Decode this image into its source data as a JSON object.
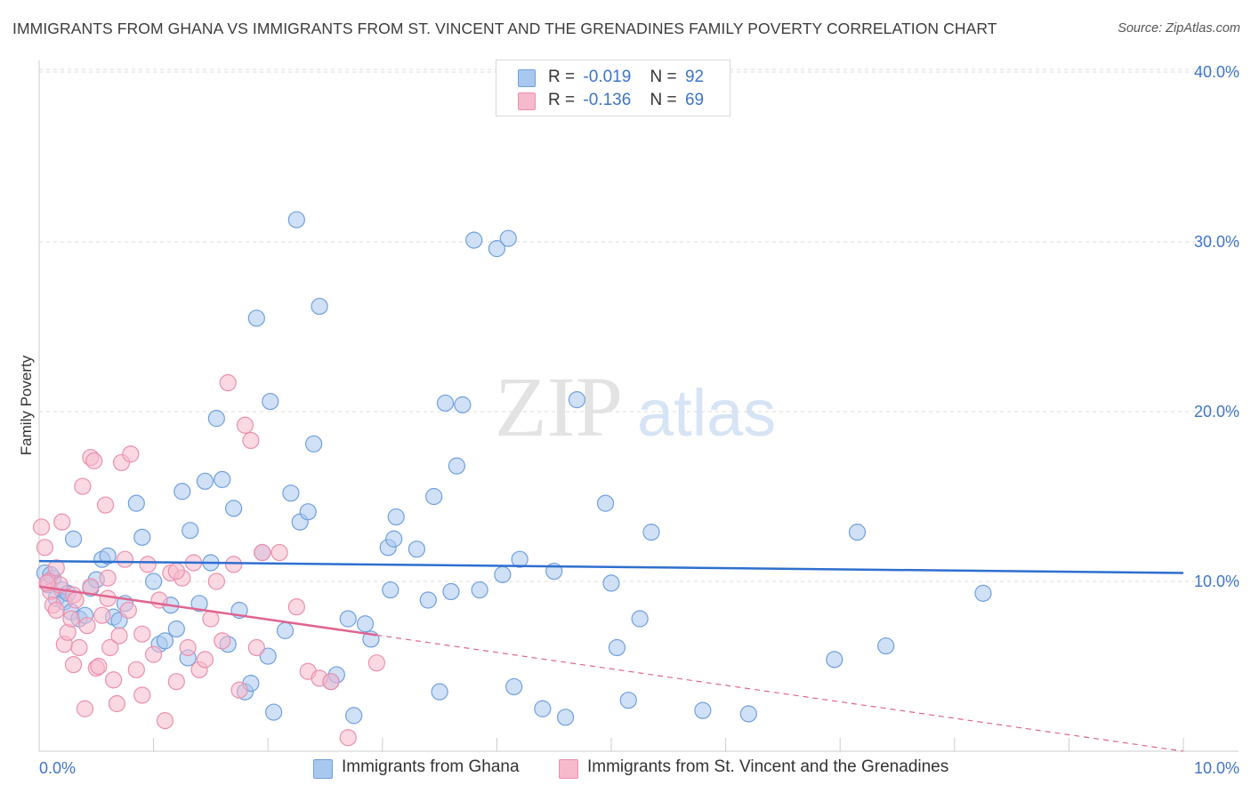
{
  "title": "IMMIGRANTS FROM GHANA VS IMMIGRANTS FROM ST. VINCENT AND THE GRENADINES FAMILY POVERTY CORRELATION CHART",
  "source": "Source: ZipAtlas.com",
  "watermark": {
    "zip": "ZIP",
    "atlas": "atlas"
  },
  "legend": {
    "r_label": "R =",
    "n_label": "N =",
    "rows": [
      {
        "r": "-0.019",
        "n": "92"
      },
      {
        "r": "-0.136",
        "n": "69"
      }
    ]
  },
  "colors": {
    "blue_fill": "#a9c8f0",
    "blue_stroke": "#6f9fdd",
    "blue_line": "#2e6fcf",
    "pink_fill": "#f7b9cc",
    "pink_stroke": "#ea8fae",
    "pink_line": "#e0648f",
    "tick_text": "#3d75c9",
    "grid": "#dddddd"
  },
  "chart_data": {
    "type": "scatter",
    "ylabel": "Family Poverty",
    "xlim": [
      0,
      10
    ],
    "ylim": [
      0,
      42
    ],
    "x_tick_labels": [
      "0.0%",
      "10.0%"
    ],
    "y_ticks": [
      10,
      20,
      30,
      40
    ],
    "y_tick_labels": [
      "10.0%",
      "20.0%",
      "30.0%",
      "40.0%"
    ],
    "grid": "horizontal dashed",
    "legend_placement": "top-center",
    "series": [
      {
        "name": "Immigrants from Ghana",
        "color": "blue",
        "trend": {
          "x": [
            0,
            10
          ],
          "y": [
            11.2,
            10.5
          ],
          "solid_until": 10
        },
        "points": [
          [
            0.05,
            10.5
          ],
          [
            0.08,
            9.8
          ],
          [
            0.12,
            10.2
          ],
          [
            0.15,
            9.0
          ],
          [
            0.2,
            9.5
          ],
          [
            0.22,
            8.8
          ],
          [
            0.25,
            9.3
          ],
          [
            0.28,
            8.2
          ],
          [
            0.3,
            12.5
          ],
          [
            0.35,
            7.8
          ],
          [
            0.4,
            8.0
          ],
          [
            0.45,
            9.6
          ],
          [
            0.5,
            10.1
          ],
          [
            0.55,
            11.3
          ],
          [
            0.6,
            11.5
          ],
          [
            0.65,
            7.9
          ],
          [
            0.7,
            7.7
          ],
          [
            0.75,
            8.7
          ],
          [
            0.85,
            14.6
          ],
          [
            0.9,
            12.6
          ],
          [
            1.0,
            10.0
          ],
          [
            1.05,
            6.3
          ],
          [
            1.1,
            6.5
          ],
          [
            1.15,
            8.6
          ],
          [
            1.2,
            7.2
          ],
          [
            1.25,
            15.3
          ],
          [
            1.3,
            5.5
          ],
          [
            1.32,
            13.0
          ],
          [
            1.4,
            8.7
          ],
          [
            1.45,
            15.9
          ],
          [
            1.5,
            11.1
          ],
          [
            1.55,
            19.6
          ],
          [
            1.6,
            16.0
          ],
          [
            1.65,
            6.3
          ],
          [
            1.7,
            14.3
          ],
          [
            1.75,
            8.3
          ],
          [
            1.8,
            3.5
          ],
          [
            1.85,
            4.0
          ],
          [
            1.9,
            25.5
          ],
          [
            1.95,
            11.7
          ],
          [
            2.0,
            5.6
          ],
          [
            2.02,
            20.6
          ],
          [
            2.05,
            2.3
          ],
          [
            2.15,
            7.1
          ],
          [
            2.2,
            15.2
          ],
          [
            2.25,
            31.3
          ],
          [
            2.28,
            13.5
          ],
          [
            2.35,
            14.1
          ],
          [
            2.4,
            18.1
          ],
          [
            2.45,
            26.2
          ],
          [
            2.55,
            4.1
          ],
          [
            2.6,
            4.5
          ],
          [
            2.7,
            7.8
          ],
          [
            2.75,
            2.1
          ],
          [
            2.85,
            7.5
          ],
          [
            2.9,
            6.6
          ],
          [
            3.05,
            12.0
          ],
          [
            3.07,
            9.5
          ],
          [
            3.1,
            12.5
          ],
          [
            3.12,
            13.8
          ],
          [
            3.3,
            11.9
          ],
          [
            3.4,
            8.9
          ],
          [
            3.45,
            15.0
          ],
          [
            3.5,
            3.5
          ],
          [
            3.55,
            20.5
          ],
          [
            3.6,
            9.4
          ],
          [
            3.65,
            16.8
          ],
          [
            3.7,
            20.4
          ],
          [
            3.8,
            30.1
          ],
          [
            3.85,
            9.5
          ],
          [
            4.0,
            29.6
          ],
          [
            4.05,
            10.4
          ],
          [
            4.1,
            30.2
          ],
          [
            4.15,
            3.8
          ],
          [
            4.2,
            11.3
          ],
          [
            4.4,
            2.5
          ],
          [
            4.5,
            10.6
          ],
          [
            4.6,
            2.0
          ],
          [
            4.7,
            20.7
          ],
          [
            4.95,
            14.6
          ],
          [
            5.0,
            9.9
          ],
          [
            5.05,
            6.1
          ],
          [
            5.15,
            3.0
          ],
          [
            5.25,
            7.8
          ],
          [
            5.35,
            12.9
          ],
          [
            5.8,
            2.4
          ],
          [
            6.2,
            2.2
          ],
          [
            6.95,
            5.4
          ],
          [
            7.15,
            12.9
          ],
          [
            7.4,
            6.2
          ],
          [
            8.25,
            9.3
          ],
          [
            0.1,
            10.4
          ]
        ]
      },
      {
        "name": "Immigrants from St. Vincent and the Grenadines",
        "color": "pink",
        "trend": {
          "x": [
            0,
            10
          ],
          "y": [
            9.7,
            0.0
          ],
          "solid_until": 2.95
        },
        "points": [
          [
            0.02,
            13.2
          ],
          [
            0.05,
            12.0
          ],
          [
            0.08,
            10.0
          ],
          [
            0.1,
            9.4
          ],
          [
            0.12,
            8.6
          ],
          [
            0.15,
            10.8
          ],
          [
            0.18,
            9.8
          ],
          [
            0.2,
            13.5
          ],
          [
            0.22,
            6.3
          ],
          [
            0.25,
            7.0
          ],
          [
            0.28,
            7.8
          ],
          [
            0.3,
            9.2
          ],
          [
            0.32,
            8.9
          ],
          [
            0.35,
            6.1
          ],
          [
            0.38,
            15.6
          ],
          [
            0.4,
            2.5
          ],
          [
            0.42,
            7.4
          ],
          [
            0.45,
            17.3
          ],
          [
            0.48,
            17.1
          ],
          [
            0.5,
            4.9
          ],
          [
            0.52,
            5.0
          ],
          [
            0.55,
            8.0
          ],
          [
            0.58,
            14.5
          ],
          [
            0.6,
            10.2
          ],
          [
            0.62,
            6.1
          ],
          [
            0.65,
            4.2
          ],
          [
            0.68,
            2.8
          ],
          [
            0.7,
            6.8
          ],
          [
            0.72,
            17.0
          ],
          [
            0.75,
            11.3
          ],
          [
            0.78,
            8.3
          ],
          [
            0.8,
            17.5
          ],
          [
            0.85,
            4.8
          ],
          [
            0.9,
            3.3
          ],
          [
            0.95,
            11.0
          ],
          [
            1.0,
            5.7
          ],
          [
            1.05,
            8.9
          ],
          [
            1.1,
            1.8
          ],
          [
            1.15,
            10.5
          ],
          [
            1.2,
            4.1
          ],
          [
            1.25,
            10.2
          ],
          [
            1.3,
            6.1
          ],
          [
            1.35,
            11.1
          ],
          [
            1.4,
            4.8
          ],
          [
            1.45,
            5.4
          ],
          [
            1.5,
            7.8
          ],
          [
            1.55,
            10.0
          ],
          [
            1.6,
            6.5
          ],
          [
            1.65,
            21.7
          ],
          [
            1.7,
            11.0
          ],
          [
            1.75,
            3.6
          ],
          [
            1.8,
            19.2
          ],
          [
            1.85,
            18.3
          ],
          [
            1.9,
            6.1
          ],
          [
            1.95,
            11.7
          ],
          [
            2.1,
            11.7
          ],
          [
            2.25,
            8.5
          ],
          [
            2.35,
            4.7
          ],
          [
            2.45,
            4.3
          ],
          [
            2.55,
            4.1
          ],
          [
            2.7,
            0.8
          ],
          [
            2.95,
            5.2
          ],
          [
            0.07,
            9.9
          ],
          [
            0.6,
            9.0
          ],
          [
            0.3,
            5.1
          ],
          [
            0.9,
            6.9
          ],
          [
            1.2,
            10.6
          ],
          [
            0.15,
            8.3
          ],
          [
            0.45,
            9.7
          ]
        ]
      }
    ]
  }
}
